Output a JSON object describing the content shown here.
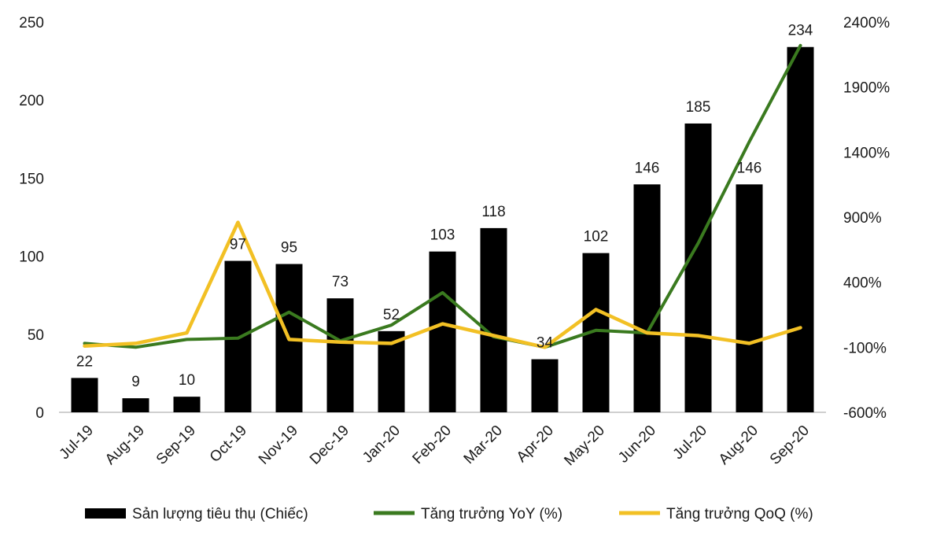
{
  "chart_data": {
    "type": "bar",
    "categories": [
      "Jul-19",
      "Aug-19",
      "Sep-19",
      "Oct-19",
      "Nov-19",
      "Dec-19",
      "Jan-20",
      "Feb-20",
      "Mar-20",
      "Apr-20",
      "May-20",
      "Jun-20",
      "Jul-20",
      "Aug-20",
      "Sep-20"
    ],
    "series": [
      {
        "name": "Sản lượng tiêu thụ (Chiếc)",
        "kind": "bar",
        "axis": "left",
        "color": "#000000",
        "values": [
          22,
          9,
          10,
          97,
          95,
          73,
          52,
          103,
          118,
          34,
          102,
          146,
          185,
          146,
          234
        ],
        "labels": [
          "22",
          "9",
          "10",
          "97",
          "95",
          "73",
          "52",
          "103",
          "118",
          "34",
          "102",
          "146",
          "185",
          "146",
          "234"
        ]
      },
      {
        "name": "Tăng trưởng YoY (%)",
        "kind": "line",
        "axis": "right",
        "color": "#3a7a1f",
        "values": [
          -70,
          -100,
          -40,
          -30,
          170,
          -50,
          70,
          320,
          -20,
          -100,
          30,
          10,
          700,
          1480,
          2220
        ]
      },
      {
        "name": "Tăng trưởng QoQ (%)",
        "kind": "line",
        "axis": "right",
        "color": "#f2c024",
        "values": [
          -90,
          -70,
          10,
          860,
          -40,
          -60,
          -70,
          80,
          -10,
          -100,
          190,
          10,
          -10,
          -70,
          50
        ]
      }
    ],
    "left_axis": {
      "min": 0,
      "max": 250,
      "ticks": [
        "0",
        "50",
        "100",
        "150",
        "200",
        "250"
      ]
    },
    "right_axis": {
      "min": -600,
      "max": 2400,
      "ticks": [
        "-600%",
        "-100%",
        "400%",
        "900%",
        "1400%",
        "1900%",
        "2400%"
      ]
    },
    "legend": {
      "position": "bottom",
      "items": [
        "Sản lượng tiêu thụ (Chiếc)",
        "Tăng trưởng YoY (%)",
        "Tăng trưởng QoQ (%)"
      ]
    }
  }
}
